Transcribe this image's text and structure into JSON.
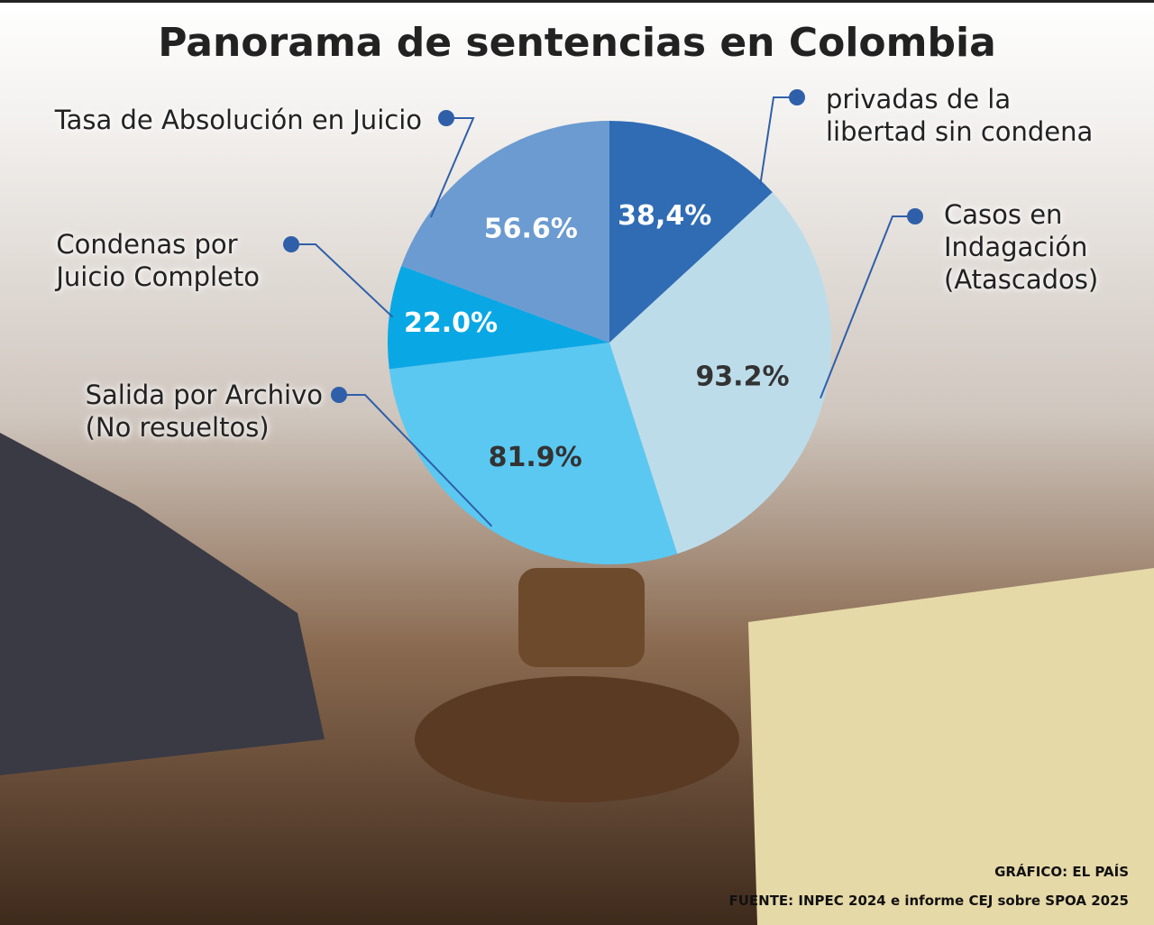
{
  "chart_data": {
    "type": "pie",
    "title": "Panorama de sentencias en Colombia",
    "categories": [
      "privadas de la\nlibertad sin condena",
      "Casos en\nIndagación\n(Atascados)",
      "Salida por Archivo\n(No resueltos)",
      "Condenas por\nJuicio Completo",
      "Tasa de Absolución en Juicio"
    ],
    "values": [
      38.4,
      93.2,
      81.9,
      22.0,
      56.6
    ],
    "value_labels": [
      "38,4%",
      "93.2%",
      "81.9%",
      "22.0%",
      "56.6%"
    ],
    "colors": [
      "#2f6cb4",
      "#bddcea",
      "#5bc8f1",
      "#0aa7e5",
      "#6b9bd0"
    ],
    "credit": "GRÁFICO: EL PAÍS",
    "source": "FUENTE: INPEC 2024 e informe CEJ sobre SPOA 2025"
  }
}
